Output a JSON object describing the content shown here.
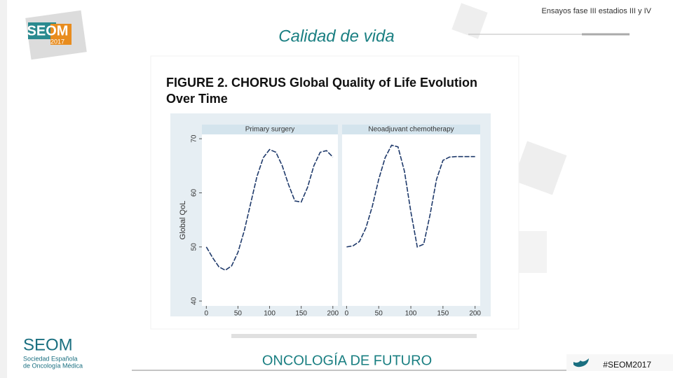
{
  "header": {
    "subtitle": "Ensayos fase III estadios III y IV",
    "title": "Calidad de vida"
  },
  "logo": {
    "name": "SEOM",
    "year": "2017"
  },
  "figure_title": [
    "FIGURE 2. CHORUS Global Quality of Life Evolution",
    "Over Time"
  ],
  "chart_data": [
    {
      "type": "line",
      "title": "Primary surgery",
      "ylabel": "Global QoL",
      "x": [
        0,
        10,
        20,
        30,
        40,
        50,
        60,
        70,
        80,
        90,
        100,
        110,
        120,
        130,
        140,
        150,
        160,
        170,
        180,
        190,
        200
      ],
      "series": [
        {
          "color": "#1f3a6b",
          "values": [
            50,
            48,
            46.3,
            45.7,
            46.5,
            49,
            53,
            58,
            63,
            66.5,
            68,
            67.5,
            65,
            61.5,
            58.5,
            58.3,
            61,
            65,
            67.5,
            67.8,
            66.6
          ]
        }
      ],
      "xlim": [
        -7,
        208
      ],
      "ylim": [
        39.1,
        70.8
      ],
      "xticks": [
        0,
        50,
        100,
        150,
        200
      ],
      "yticks": [
        40,
        50,
        60,
        70
      ]
    },
    {
      "type": "line",
      "title": "Neoadjuvant chemotherapy",
      "x": [
        0,
        10,
        20,
        30,
        40,
        50,
        60,
        70,
        80,
        90,
        100,
        110,
        120,
        130,
        140,
        150,
        160,
        170,
        180,
        190,
        200
      ],
      "series": [
        {
          "color": "#1f3a6b",
          "values": [
            50,
            50.2,
            51,
            53.5,
            57.5,
            62.5,
            66.5,
            68.8,
            68.5,
            64,
            56.5,
            50,
            50.5,
            56,
            62.5,
            66,
            66.6,
            66.7,
            66.7,
            66.7,
            66.7
          ]
        }
      ],
      "xlim": [
        -7,
        208
      ],
      "ylim": [
        39.1,
        70.8
      ],
      "xticks": [
        0,
        50,
        100,
        150,
        200
      ]
    }
  ],
  "footer": {
    "org": "SEOM",
    "org_sub": [
      "Sociedad Española",
      "de Oncología Médica"
    ],
    "tagline": "ONCOLOGÍA DE FUTURO",
    "hashtag": "#SEOM2017"
  }
}
